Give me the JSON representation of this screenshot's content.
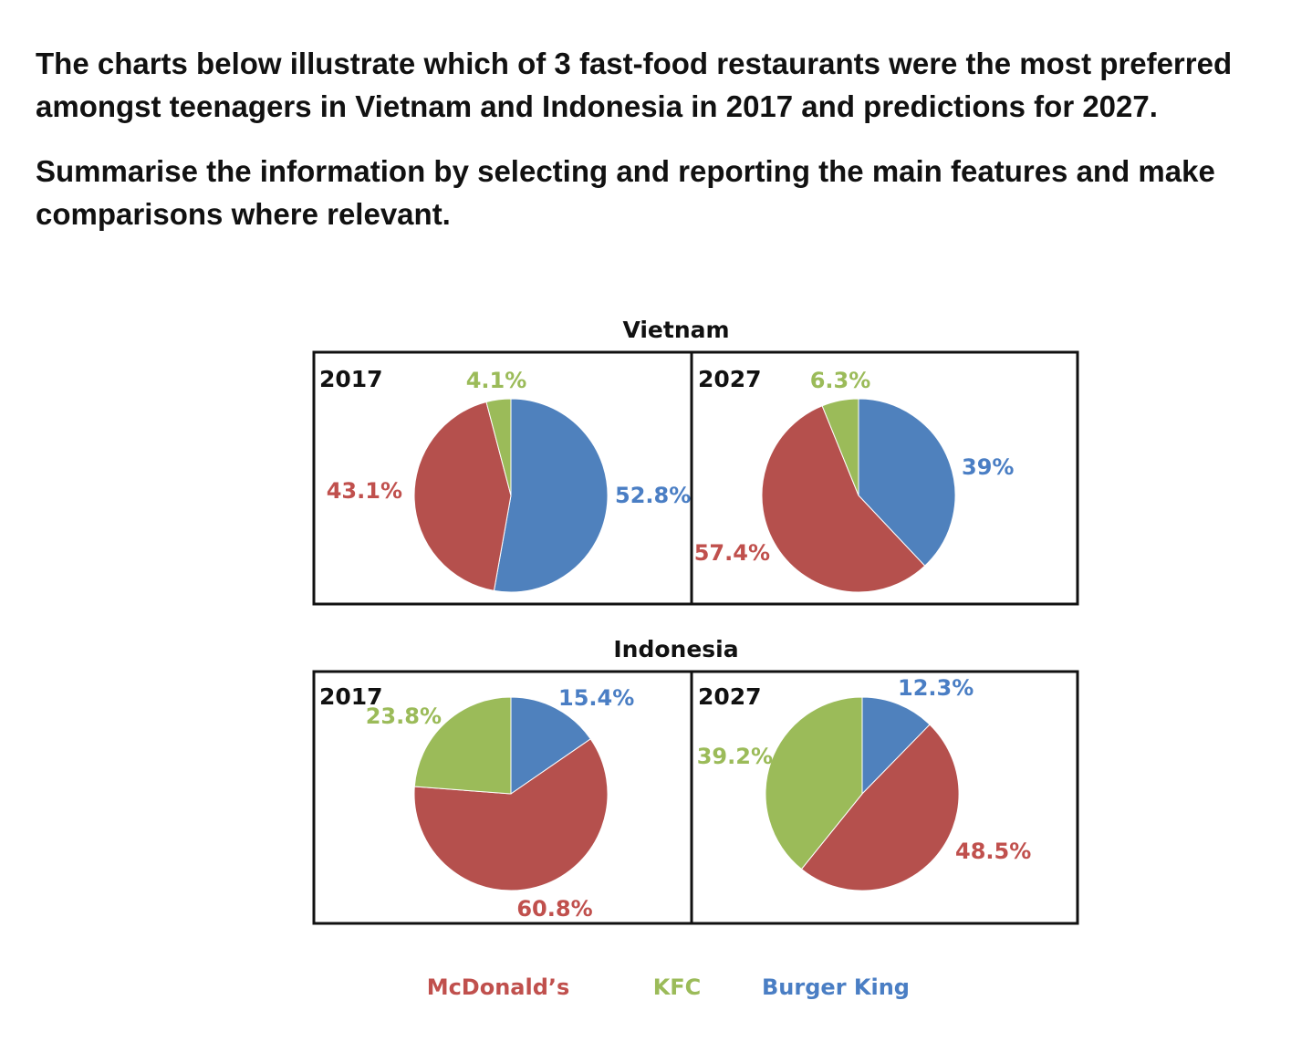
{
  "prompt": {
    "paragraph1": "The charts below illustrate which of 3 fast-food restaurants were the most preferred amongst teenagers in Vietnam and Indonesia in 2017 and predictions for 2027.",
    "paragraph2": "Summarise the information by selecting and reporting the main features and make comparisons where relevant."
  },
  "colors": {
    "McDonald's": "#b5504d",
    "KFC": "#9bbb59",
    "Burger King": "#4f81bd"
  },
  "label_colors": {
    "McDonald's": "#c0504d",
    "KFC": "#9bbb59",
    "Burger King": "#4a7ec4"
  },
  "legend": [
    "McDonald’s",
    "KFC",
    "Burger King"
  ],
  "chart_data": [
    {
      "type": "pie",
      "group": "Vietnam",
      "title": "2017",
      "labels": [
        "Burger King",
        "McDonald's",
        "KFC"
      ],
      "values": [
        52.8,
        43.1,
        4.1
      ],
      "value_labels": [
        "52.8%",
        "43.1%",
        "4.1%"
      ]
    },
    {
      "type": "pie",
      "group": "Vietnam",
      "title": "2027",
      "labels": [
        "Burger King",
        "McDonald's",
        "KFC"
      ],
      "values": [
        39,
        57.4,
        6.3
      ],
      "value_labels": [
        "39%",
        "57.4%",
        "6.3%"
      ]
    },
    {
      "type": "pie",
      "group": "Indonesia",
      "title": "2017",
      "labels": [
        "Burger King",
        "McDonald's",
        "KFC"
      ],
      "values": [
        15.4,
        60.8,
        23.8
      ],
      "value_labels": [
        "15.4%",
        "60.8%",
        "23.8%"
      ]
    },
    {
      "type": "pie",
      "group": "Indonesia",
      "title": "2027",
      "labels": [
        "Burger King",
        "McDonald's",
        "KFC"
      ],
      "values": [
        12.3,
        48.5,
        39.2
      ],
      "value_labels": [
        "12.3%",
        "48.5%",
        "39.2%"
      ]
    }
  ]
}
